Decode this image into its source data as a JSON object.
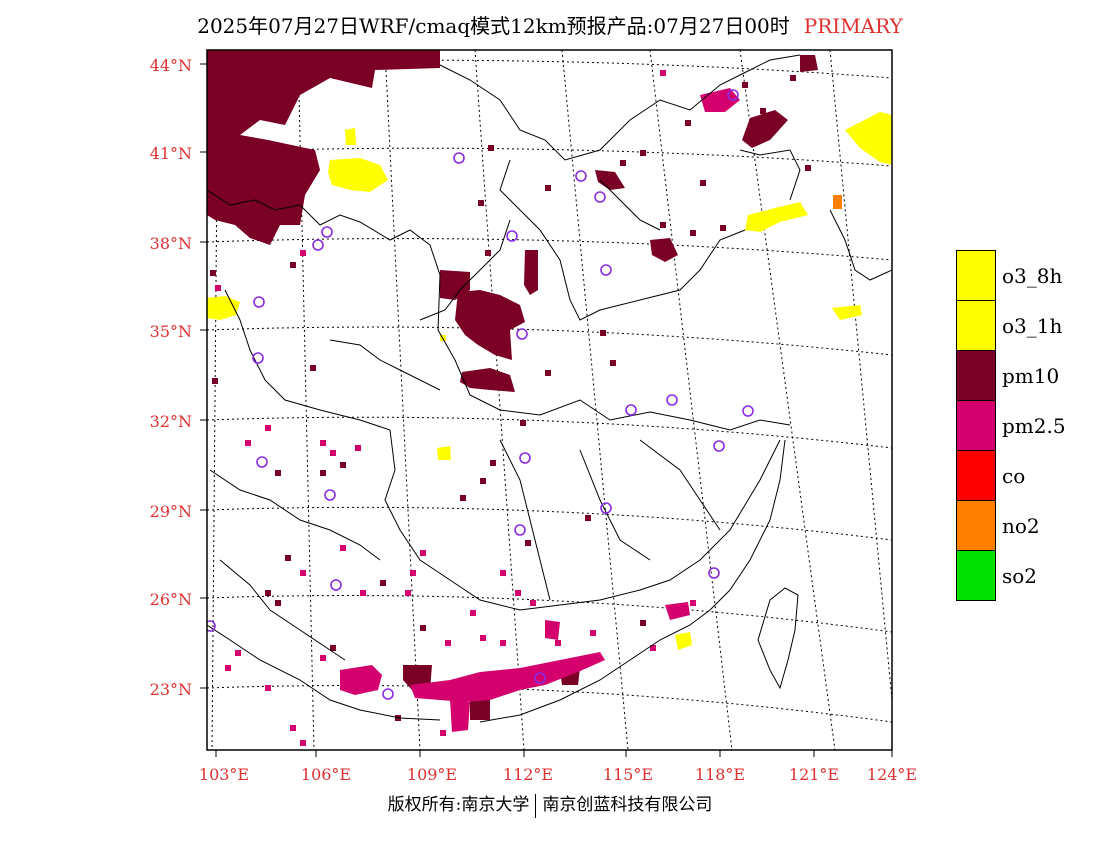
{
  "header": {
    "title": "2025年07月27日WRF/cmaq模式12km预报产品:07月27日00时",
    "mode": "PRIMARY"
  },
  "axes": {
    "lat_labels": [
      "44°N",
      "41°N",
      "38°N",
      "35°N",
      "32°N",
      "29°N",
      "26°N",
      "23°N"
    ],
    "lon_labels": [
      "103°E",
      "106°E",
      "109°E",
      "112°E",
      "115°E",
      "118°E",
      "121°E",
      "124°E"
    ]
  },
  "legend": {
    "items": [
      {
        "label": "o3_8h",
        "color": "#ffff00"
      },
      {
        "label": "o3_1h",
        "color": "#ffff00"
      },
      {
        "label": "pm10",
        "color": "#7a0026"
      },
      {
        "label": "pm2.5",
        "color": "#d4006e"
      },
      {
        "label": "co",
        "color": "#ff0000"
      },
      {
        "label": "no2",
        "color": "#ff7f00"
      },
      {
        "label": "so2",
        "color": "#00e000"
      }
    ]
  },
  "footer": {
    "left": "版权所有:南京大学",
    "right": "南京创蓝科技有限公司"
  }
}
